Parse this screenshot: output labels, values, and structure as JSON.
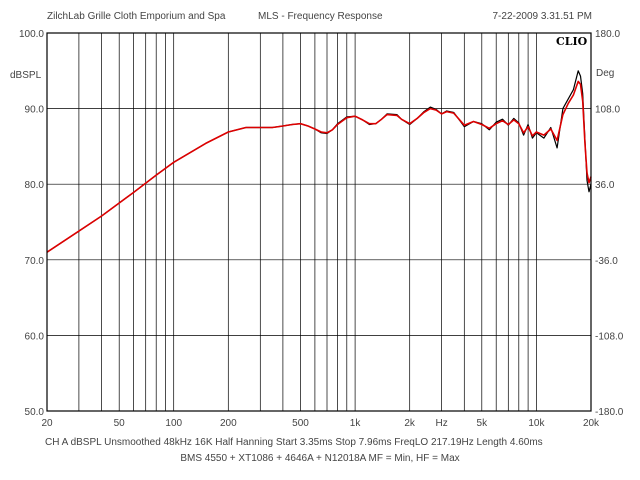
{
  "header": {
    "left": "ZilchLab Grille Cloth Emporium and Spa",
    "center": "MLS - Frequency Response",
    "right": "7-22-2009 3.31.51 PM"
  },
  "footer": {
    "settings": "CH A   dBSPL   Unsmoothed   48kHz   16K   Half Hanning   Start 3.35ms   Stop 7.96ms   FreqLO 217.19Hz   Length 4.60ms",
    "caption": "BMS 4550 + XT1086 + 4646A + N12018A MF = Min, HF = Max"
  },
  "chart_data": {
    "type": "line",
    "logo": "CLIO",
    "ylabel": "dBSPL",
    "y2label": "Deg",
    "xlabel": "Hz",
    "xscale": "log",
    "xlim": [
      20,
      20000
    ],
    "ylim": [
      50,
      100
    ],
    "y2lim": [
      -180,
      180
    ],
    "yticks": [
      "100.0",
      "90.0",
      "80.0",
      "70.0",
      "60.0",
      "50.0"
    ],
    "y2ticks": [
      "180.0",
      "108.0",
      "36.0",
      "-36.0",
      "-108.0",
      "-180.0"
    ],
    "xtick_labels": [
      {
        "v": 20,
        "t": "20"
      },
      {
        "v": 50,
        "t": "50"
      },
      {
        "v": 100,
        "t": "100"
      },
      {
        "v": 200,
        "t": "200"
      },
      {
        "v": 500,
        "t": "500"
      },
      {
        "v": 1000,
        "t": "1k"
      },
      {
        "v": 2000,
        "t": "2k"
      },
      {
        "v": 5000,
        "t": "5k"
      },
      {
        "v": 10000,
        "t": "10k"
      },
      {
        "v": 20000,
        "t": "20k"
      }
    ],
    "colors": {
      "series_black": "#000000",
      "series_red": "#dd0000",
      "grid": "#000000",
      "frame": "#000000"
    },
    "series": [
      {
        "color": "black",
        "x": [
          20,
          30,
          40,
          60,
          80,
          100,
          150,
          200,
          250,
          300,
          350,
          400,
          450,
          500,
          550,
          600,
          650,
          700,
          750,
          800,
          900,
          1000,
          1100,
          1200,
          1300,
          1400,
          1500,
          1700,
          1800,
          2000,
          2200,
          2400,
          2600,
          2800,
          3000,
          3200,
          3500,
          4000,
          4500,
          5000,
          5500,
          6000,
          6500,
          7000,
          7500,
          8000,
          8500,
          9000,
          9500,
          10000,
          11000,
          12000,
          13000,
          14000,
          15000,
          16000,
          17000,
          17500,
          18000,
          18500,
          19000,
          19500,
          20000
        ],
        "y": [
          71.0,
          73.8,
          75.8,
          78.9,
          81.2,
          82.9,
          85.4,
          86.9,
          87.5,
          87.5,
          87.5,
          87.7,
          87.9,
          88.0,
          87.7,
          87.3,
          86.8,
          86.7,
          87.2,
          88.0,
          88.9,
          89.0,
          88.5,
          87.9,
          88.0,
          88.6,
          89.3,
          89.2,
          88.6,
          87.9,
          88.7,
          89.6,
          90.2,
          89.9,
          89.3,
          89.7,
          89.5,
          87.6,
          88.3,
          88.0,
          87.2,
          88.2,
          88.6,
          87.8,
          88.7,
          88.1,
          86.5,
          87.9,
          86.1,
          86.8,
          86.1,
          87.5,
          84.8,
          90.0,
          91.3,
          92.5,
          95.0,
          94.3,
          92.0,
          86.0,
          80.5,
          79.0,
          80.0
        ]
      },
      {
        "color": "red",
        "x": [
          20,
          30,
          40,
          60,
          80,
          100,
          150,
          200,
          250,
          300,
          350,
          400,
          450,
          500,
          550,
          600,
          650,
          700,
          750,
          800,
          900,
          1000,
          1100,
          1200,
          1300,
          1400,
          1500,
          1700,
          1800,
          2000,
          2200,
          2400,
          2600,
          2800,
          3000,
          3200,
          3500,
          4000,
          4500,
          5000,
          5500,
          6000,
          6500,
          7000,
          7500,
          8000,
          8500,
          9000,
          9500,
          10000,
          11000,
          12000,
          13000,
          14000,
          15000,
          16000,
          17000,
          17500,
          18000,
          18500,
          19000,
          19500,
          20000
        ],
        "y": [
          71.0,
          73.8,
          75.8,
          78.9,
          81.2,
          82.9,
          85.4,
          86.9,
          87.5,
          87.5,
          87.5,
          87.7,
          87.9,
          88.0,
          87.7,
          87.3,
          86.9,
          86.8,
          87.2,
          87.9,
          88.8,
          89.0,
          88.5,
          88.0,
          88.0,
          88.6,
          89.2,
          89.1,
          88.6,
          88.0,
          88.7,
          89.5,
          90.0,
          89.8,
          89.3,
          89.6,
          89.4,
          87.8,
          88.3,
          87.9,
          87.4,
          88.0,
          88.4,
          87.9,
          88.5,
          88.0,
          86.8,
          87.6,
          86.4,
          86.9,
          86.5,
          87.3,
          85.8,
          89.2,
          90.7,
          91.8,
          93.6,
          93.2,
          91.0,
          85.5,
          81.5,
          80.2,
          81.0
        ]
      }
    ]
  }
}
